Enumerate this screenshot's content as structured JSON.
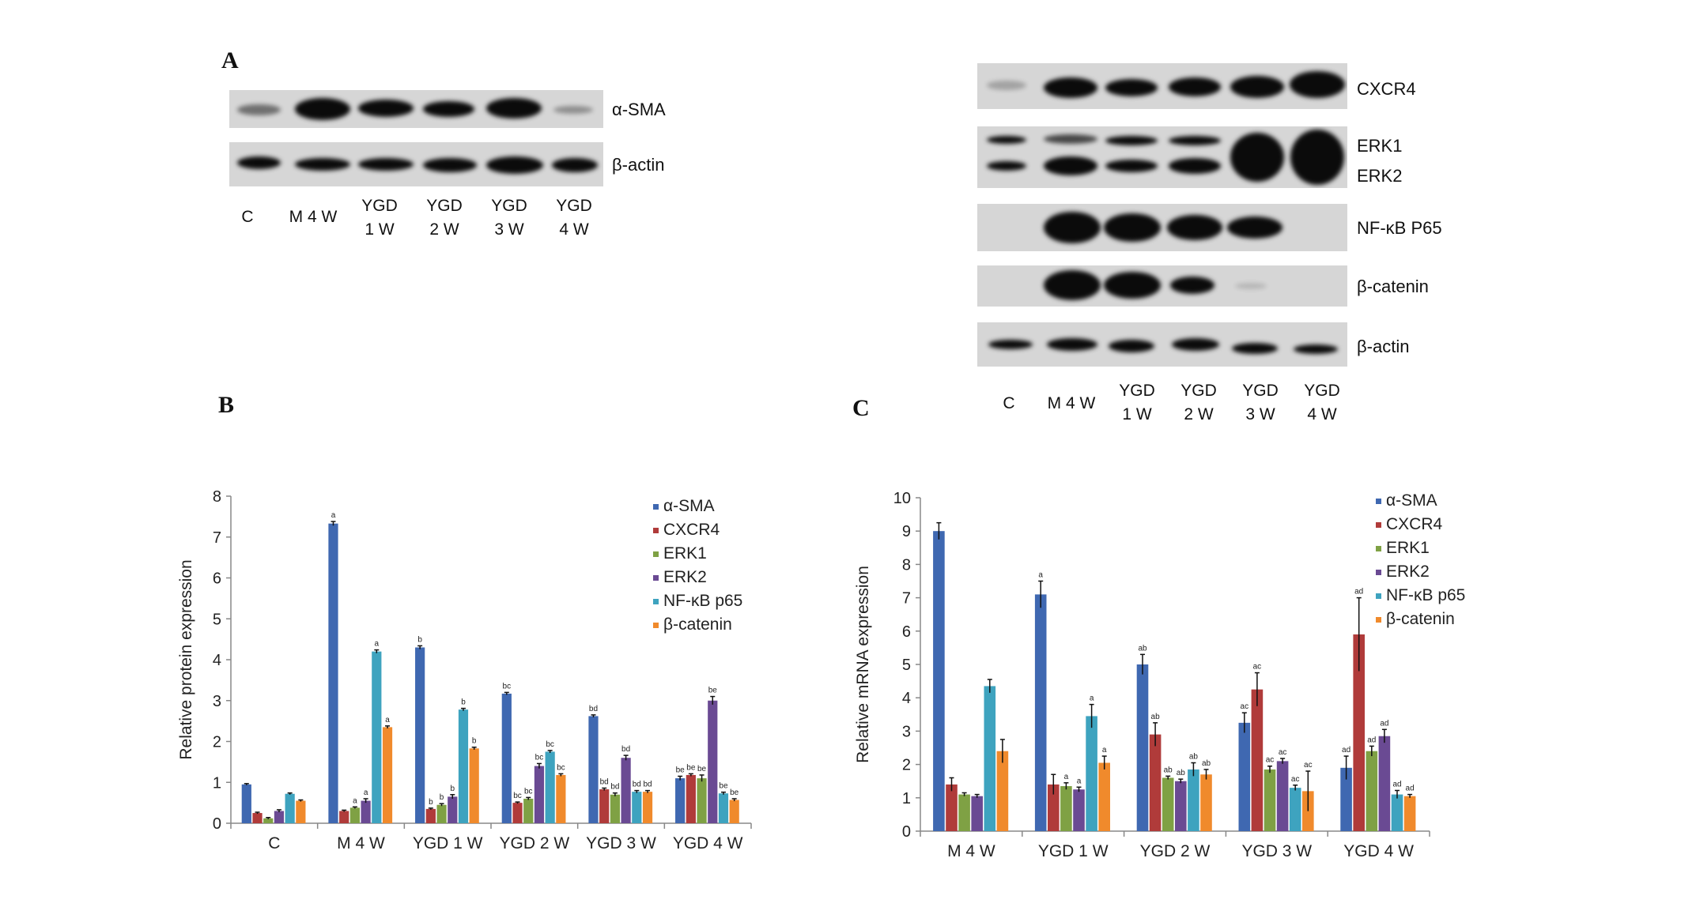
{
  "panels": {
    "a": "A",
    "b": "B",
    "c": "C"
  },
  "blot_a": {
    "labels": [
      "α-SMA",
      "β-actin"
    ],
    "lanes": [
      "C",
      "M 4 W",
      "YGD\n1 W",
      "YGD\n2 W",
      "YGD\n3 W",
      "YGD\n4 W"
    ]
  },
  "blot_right": {
    "labels": [
      "CXCR4",
      "ERK1",
      "ERK2",
      "NF-κB P65",
      "β-catenin",
      "β-actin"
    ],
    "lanes": [
      "C",
      "M 4 W",
      "YGD\n1 W",
      "YGD\n2 W",
      "YGD\n3 W",
      "YGD\n4 W"
    ]
  },
  "chart_data": [
    {
      "type": "bar",
      "ylabel": "Relative protein expression",
      "ylim": [
        0,
        8
      ],
      "yticks": [
        0,
        1,
        2,
        3,
        4,
        5,
        6,
        7,
        8
      ],
      "legend_position": "top-right",
      "categories": [
        "C",
        "M 4 W",
        "YGD 1 W",
        "YGD 2 W",
        "YGD 3 W",
        "YGD 4 W"
      ],
      "series": [
        {
          "name": "α-SMA",
          "color": "#3f68b1",
          "values": [
            0.95,
            7.33,
            4.3,
            3.17,
            2.62,
            1.1
          ],
          "errors": [
            0.02,
            0.05,
            0.04,
            0.03,
            0.03,
            0.05
          ],
          "labels": [
            "",
            "a",
            "b",
            "bc",
            "bd",
            "be"
          ]
        },
        {
          "name": "CXCR4",
          "color": "#b03b3a",
          "values": [
            0.25,
            0.3,
            0.35,
            0.5,
            0.83,
            1.18
          ],
          "errors": [
            0.02,
            0.02,
            0.02,
            0.02,
            0.03,
            0.03
          ],
          "labels": [
            "",
            "",
            "b",
            "bc",
            "bd",
            "be"
          ]
        },
        {
          "name": "ERK1",
          "color": "#7fa144",
          "values": [
            0.12,
            0.38,
            0.45,
            0.6,
            0.7,
            1.1
          ],
          "errors": [
            0.02,
            0.02,
            0.03,
            0.03,
            0.04,
            0.08
          ],
          "labels": [
            "",
            "a",
            "b",
            "bc",
            "bd",
            "be"
          ]
        },
        {
          "name": "ERK2",
          "color": "#6a4a93",
          "values": [
            0.3,
            0.55,
            0.65,
            1.4,
            1.6,
            3.0
          ],
          "errors": [
            0.03,
            0.05,
            0.05,
            0.06,
            0.06,
            0.1
          ],
          "labels": [
            "",
            "a",
            "b",
            "bc",
            "bd",
            "be"
          ]
        },
        {
          "name": "NF-κB p65",
          "color": "#3ea3bf",
          "values": [
            0.72,
            4.2,
            2.78,
            1.75,
            0.77,
            0.73
          ],
          "errors": [
            0.02,
            0.04,
            0.03,
            0.03,
            0.03,
            0.03
          ],
          "labels": [
            "",
            "a",
            "b",
            "bc",
            "bd",
            "be"
          ]
        },
        {
          "name": "β-catenin",
          "color": "#f08a2c",
          "values": [
            0.55,
            2.35,
            1.83,
            1.18,
            0.77,
            0.57
          ],
          "errors": [
            0.02,
            0.03,
            0.03,
            0.03,
            0.03,
            0.03
          ],
          "labels": [
            "",
            "a",
            "b",
            "bc",
            "bd",
            "be"
          ]
        }
      ]
    },
    {
      "type": "bar",
      "ylabel": "Relative mRNA expression",
      "ylim": [
        0,
        10
      ],
      "yticks": [
        0,
        1,
        2,
        3,
        4,
        5,
        6,
        7,
        8,
        9,
        10
      ],
      "legend_position": "top-right",
      "categories": [
        "M 4 W",
        "YGD 1 W",
        "YGD 2 W",
        "YGD 3 W",
        "YGD 4 W"
      ],
      "series": [
        {
          "name": "α-SMA",
          "color": "#3f68b1",
          "values": [
            9.0,
            7.1,
            5.0,
            3.25,
            1.9
          ],
          "errors": [
            0.25,
            0.4,
            0.3,
            0.3,
            0.35
          ],
          "labels": [
            "",
            "a",
            "ab",
            "ac",
            "ad"
          ]
        },
        {
          "name": "CXCR4",
          "color": "#b03b3a",
          "values": [
            1.4,
            1.4,
            2.9,
            4.25,
            5.9
          ],
          "errors": [
            0.2,
            0.3,
            0.35,
            0.5,
            1.1
          ],
          "labels": [
            "",
            "",
            "ab",
            "ac",
            "ad"
          ]
        },
        {
          "name": "ERK1",
          "color": "#7fa144",
          "values": [
            1.1,
            1.35,
            1.6,
            1.85,
            2.4
          ],
          "errors": [
            0.05,
            0.1,
            0.05,
            0.1,
            0.15
          ],
          "labels": [
            "",
            "a",
            "ab",
            "ac",
            "ad"
          ]
        },
        {
          "name": "ERK2",
          "color": "#6a4a93",
          "values": [
            1.05,
            1.25,
            1.5,
            2.1,
            2.85
          ],
          "errors": [
            0.05,
            0.07,
            0.06,
            0.08,
            0.2
          ],
          "labels": [
            "",
            "a",
            "ab",
            "ac",
            "ad"
          ]
        },
        {
          "name": "NF-κB p65",
          "color": "#3ea3bf",
          "values": [
            4.35,
            3.45,
            1.85,
            1.3,
            1.1
          ],
          "errors": [
            0.2,
            0.35,
            0.2,
            0.08,
            0.12
          ],
          "labels": [
            "",
            "a",
            "ab",
            "ac",
            "ad"
          ]
        },
        {
          "name": "β-catenin",
          "color": "#f08a2c",
          "values": [
            2.4,
            2.05,
            1.7,
            1.2,
            1.05
          ],
          "errors": [
            0.35,
            0.2,
            0.15,
            0.6,
            0.05
          ],
          "labels": [
            "",
            "a",
            "ab",
            "ac",
            "ad"
          ]
        }
      ]
    }
  ]
}
